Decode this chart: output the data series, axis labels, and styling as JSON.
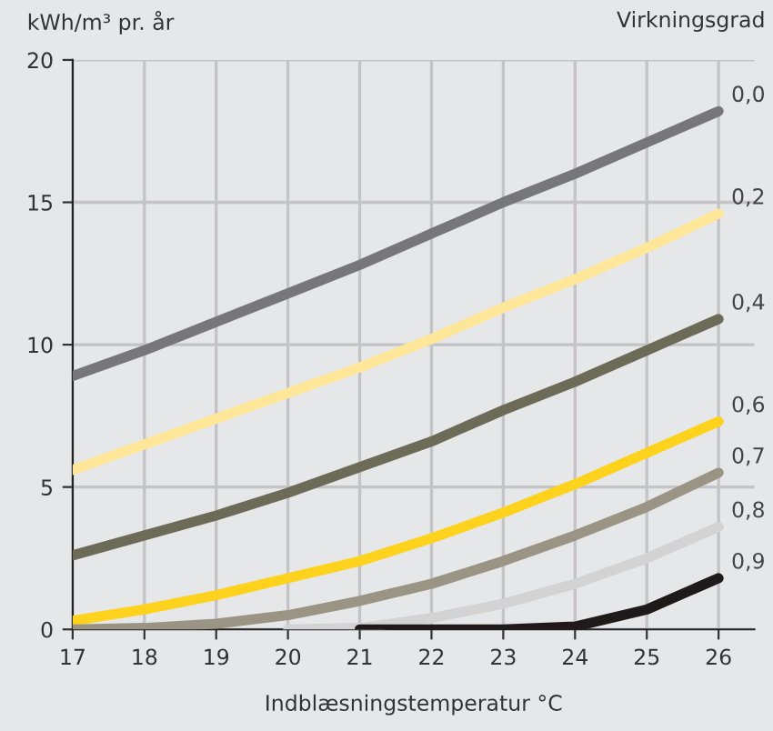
{
  "chart_data": {
    "type": "line",
    "xlabel": "Indblæsningstemperatur °C",
    "ylabel": "kWh/m³ pr. år",
    "legend_title": "Virkningsgrad",
    "x": [
      17,
      18,
      19,
      20,
      21,
      22,
      23,
      24,
      25,
      26
    ],
    "series": [
      {
        "name": "0,0",
        "color": "#77777a",
        "values": [
          8.9,
          9.8,
          10.8,
          11.8,
          12.8,
          13.9,
          15.0,
          16.0,
          17.1,
          18.2
        ]
      },
      {
        "name": "0,2",
        "color": "#ffe699",
        "values": [
          5.6,
          6.5,
          7.4,
          8.3,
          9.2,
          10.2,
          11.3,
          12.3,
          13.4,
          14.6
        ]
      },
      {
        "name": "0,4",
        "color": "#6b6b58",
        "values": [
          2.6,
          3.3,
          4.0,
          4.8,
          5.7,
          6.6,
          7.7,
          8.7,
          9.8,
          10.9
        ]
      },
      {
        "name": "0,6",
        "color": "#ffd21e",
        "values": [
          0.3,
          0.7,
          1.2,
          1.8,
          2.4,
          3.2,
          4.1,
          5.1,
          6.2,
          7.3
        ]
      },
      {
        "name": "0,7",
        "color": "#9a9484",
        "values": [
          0.0,
          0.05,
          0.2,
          0.5,
          1.0,
          1.6,
          2.4,
          3.3,
          4.3,
          5.5
        ]
      },
      {
        "name": "0,8",
        "color": "#d3d3d3",
        "values": [
          null,
          null,
          null,
          0.0,
          0.05,
          0.4,
          0.9,
          1.6,
          2.5,
          3.6
        ]
      },
      {
        "name": "0,9",
        "color": "#1f1a1a",
        "values": [
          null,
          null,
          null,
          null,
          0.0,
          0.0,
          0.0,
          0.1,
          0.7,
          1.8
        ]
      }
    ],
    "xlim": [
      17,
      26.5
    ],
    "ylim": [
      0,
      20
    ],
    "xticks": [
      17,
      18,
      19,
      20,
      21,
      22,
      23,
      24,
      25,
      26
    ],
    "yticks": [
      0,
      5,
      10,
      15,
      20
    ],
    "grid": true,
    "marker": "none",
    "line_style": "solid"
  }
}
